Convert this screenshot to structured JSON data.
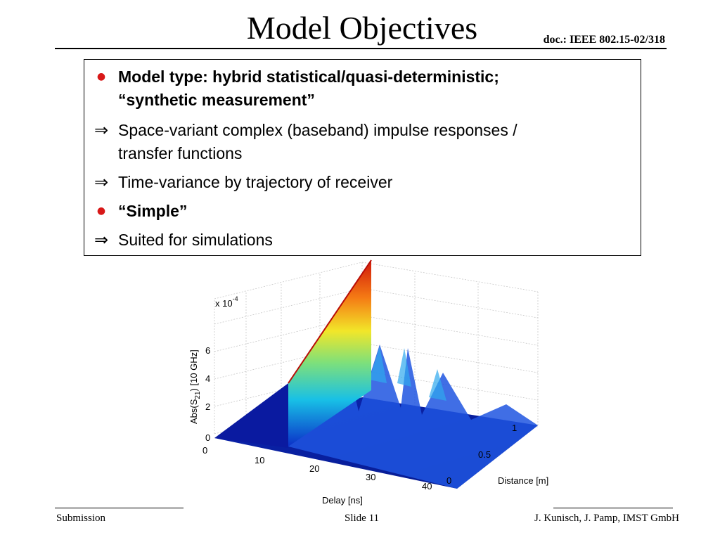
{
  "slide": {
    "title": "Model Objectives",
    "doc_ref": "doc.: IEEE 802.15-02/318"
  },
  "bullets": [
    {
      "marker": "dot",
      "bold": true,
      "lines": [
        "Model type: hybrid statistical/quasi-deterministic;",
        "“synthetic measurement”"
      ]
    },
    {
      "marker": "arrow",
      "bold": false,
      "lines": [
        "Space-variant complex (baseband) impulse responses /",
        "transfer functions"
      ]
    },
    {
      "marker": "arrow",
      "bold": false,
      "lines": [
        "Time-variance by trajectory of receiver"
      ]
    },
    {
      "marker": "dot",
      "bold": true,
      "lines": [
        "“Simple”"
      ]
    },
    {
      "marker": "arrow",
      "bold": false,
      "lines": [
        "Suited for simulations"
      ]
    }
  ],
  "markers": {
    "dot": "●",
    "arrow": "⇒"
  },
  "plot": {
    "z_label_prefix": "Abs(S",
    "z_label_sub": "21",
    "z_label_suffix": ") [10 GHz]",
    "z_scale": "x 10",
    "z_scale_exp": "-4",
    "z_ticks": [
      "0",
      "2",
      "4",
      "6"
    ],
    "delay_label": "Delay [ns]",
    "delay_ticks": [
      "0",
      "10",
      "20",
      "30",
      "40"
    ],
    "distance_label": "Distance [m]",
    "distance_ticks": [
      "0",
      "0.5",
      "1"
    ]
  },
  "footer": {
    "left": "Submission",
    "center": "Slide 11",
    "right": "J. Kunisch, J. Pamp, IMST GmbH"
  },
  "colors": {
    "bullet_dot": "#d81818",
    "floor": "#0a1aa0",
    "peak": "#e0200c"
  }
}
